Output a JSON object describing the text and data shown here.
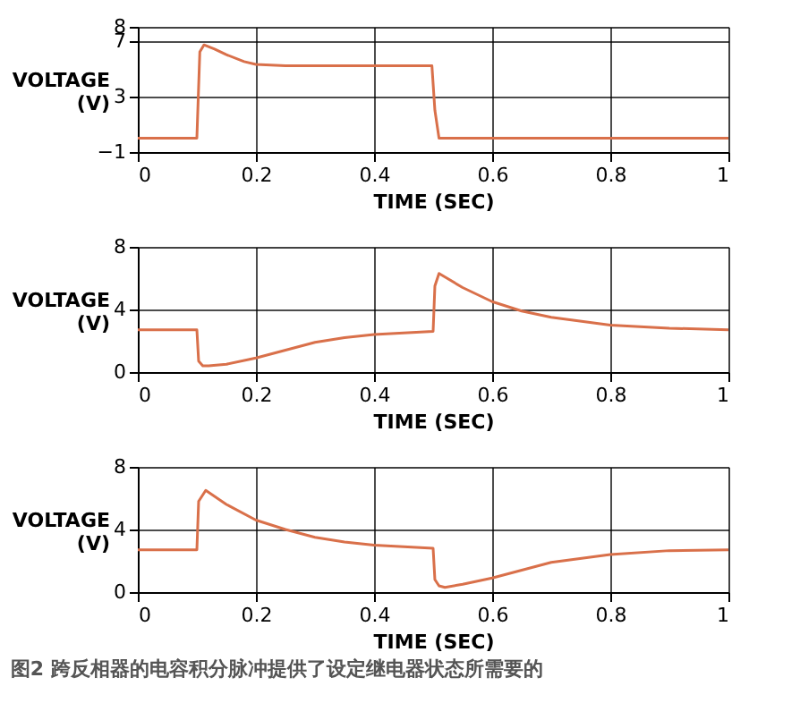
{
  "chart_data": [
    {
      "type": "line",
      "xlabel": "TIME (SEC)",
      "ylabel": "VOLTAGE (V)",
      "xlim": [
        0,
        1
      ],
      "xticks": [
        0,
        0.2,
        0.4,
        0.6,
        0.8,
        1
      ],
      "ylim": [
        -1,
        8
      ],
      "yticks": [
        -1,
        3,
        7,
        8
      ],
      "grid": true,
      "legend": false,
      "series": [
        {
          "color": "#d9704a",
          "x": [
            0,
            0.1,
            0.105,
            0.112,
            0.13,
            0.15,
            0.18,
            0.2,
            0.25,
            0.3,
            0.4,
            0.498,
            0.503,
            0.51,
            0.6,
            0.8,
            1
          ],
          "values": [
            0,
            0,
            6.2,
            6.7,
            6.4,
            6.0,
            5.5,
            5.3,
            5.2,
            5.2,
            5.2,
            5.2,
            2.0,
            0,
            0,
            0,
            0
          ]
        }
      ]
    },
    {
      "type": "line",
      "xlabel": "TIME (SEC)",
      "ylabel": "VOLTAGE (V)",
      "xlim": [
        0,
        1
      ],
      "xticks": [
        0,
        0.2,
        0.4,
        0.6,
        0.8,
        1
      ],
      "ylim": [
        0,
        8
      ],
      "yticks": [
        0,
        4,
        8
      ],
      "grid": true,
      "legend": false,
      "series": [
        {
          "color": "#d9704a",
          "x": [
            0,
            0.1,
            0.103,
            0.11,
            0.12,
            0.15,
            0.2,
            0.25,
            0.3,
            0.35,
            0.4,
            0.45,
            0.5,
            0.503,
            0.51,
            0.55,
            0.6,
            0.65,
            0.7,
            0.8,
            0.9,
            1
          ],
          "values": [
            2.7,
            2.7,
            0.7,
            0.4,
            0.4,
            0.5,
            0.9,
            1.4,
            1.9,
            2.2,
            2.4,
            2.5,
            2.6,
            5.5,
            6.3,
            5.4,
            4.5,
            3.9,
            3.5,
            3.0,
            2.8,
            2.7
          ]
        }
      ]
    },
    {
      "type": "line",
      "xlabel": "TIME (SEC)",
      "ylabel": "VOLTAGE (V)",
      "xlim": [
        0,
        1
      ],
      "xticks": [
        0,
        0.2,
        0.4,
        0.6,
        0.8,
        1
      ],
      "ylim": [
        0,
        8
      ],
      "yticks": [
        0,
        4,
        8
      ],
      "grid": true,
      "legend": false,
      "annotations": [
        "图2 跨反相器的电容积分脉冲提供了设定继电器状态所需要的"
      ],
      "series": [
        {
          "color": "#d9704a",
          "x": [
            0,
            0.1,
            0.103,
            0.115,
            0.15,
            0.2,
            0.25,
            0.3,
            0.35,
            0.4,
            0.45,
            0.5,
            0.503,
            0.51,
            0.52,
            0.55,
            0.6,
            0.65,
            0.7,
            0.8,
            0.9,
            1
          ],
          "values": [
            2.7,
            2.7,
            5.8,
            6.5,
            5.6,
            4.6,
            4.0,
            3.5,
            3.2,
            3.0,
            2.9,
            2.8,
            0.8,
            0.4,
            0.3,
            0.5,
            0.9,
            1.4,
            1.9,
            2.4,
            2.65,
            2.7
          ]
        }
      ]
    }
  ]
}
